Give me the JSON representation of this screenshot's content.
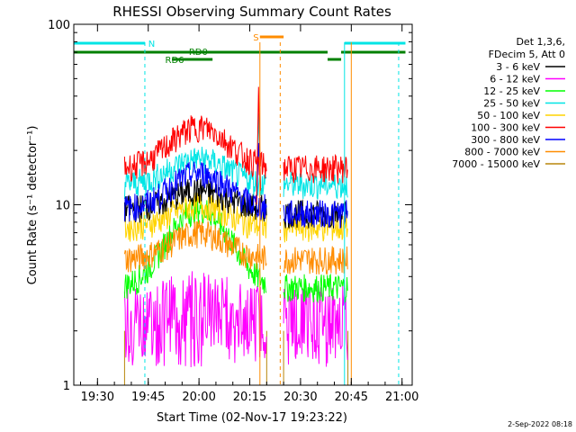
{
  "chart_data": {
    "type": "line",
    "title": "RHESSI Observing Summary Count Rates",
    "xlabel": "Start Time (02-Nov-17 19:23:22)",
    "ylabel": "Count Rate (s⁻¹ detector⁻¹)",
    "y_scale": "log",
    "ylim": [
      1,
      100
    ],
    "xlim_minutes": [
      "19:23",
      "21:03"
    ],
    "x_ticks": [
      "19:30",
      "19:45",
      "20:00",
      "20:15",
      "20:30",
      "20:45",
      "21:00"
    ],
    "y_ticks": [
      "1",
      "10",
      "100"
    ],
    "legend_position": "top-right",
    "legend_header": [
      "Det 1,3,6,",
      "FDecim 5, Att 0"
    ],
    "series": [
      {
        "name": "3 - 6 keV",
        "color": "#000000",
        "level_first": 9.5,
        "level_mid": 12,
        "level_last": 9.0
      },
      {
        "name": "6 - 12 keV",
        "color": "#ff00ff",
        "level_first": 2.5,
        "level_mid": 3.0,
        "level_last": 2.5
      },
      {
        "name": "12 - 25 keV",
        "color": "#00ff00",
        "level_first": 3.5,
        "level_mid": 9.5,
        "level_last": 3.5
      },
      {
        "name": "25 - 50 keV",
        "color": "#00e5e5",
        "level_first": 13,
        "level_mid": 18,
        "level_last": 13
      },
      {
        "name": "50 - 100 keV",
        "color": "#ffd400",
        "level_first": 7.5,
        "level_mid": 10,
        "level_last": 7.5
      },
      {
        "name": "100 - 300 keV",
        "color": "#ff0000",
        "level_first": 16,
        "level_mid": 27,
        "level_last": 16
      },
      {
        "name": "300 - 800 keV",
        "color": "#0000ff",
        "level_first": 9.5,
        "level_mid": 15,
        "level_last": 9.0
      },
      {
        "name": "800 - 7000 keV",
        "color": "#ff8c00",
        "level_first": 5.0,
        "level_mid": 7.0,
        "level_last": 5.0
      },
      {
        "name": "7000 - 15000 keV",
        "color": "#b8860b",
        "level_first": 1.0,
        "level_mid": 1.0,
        "level_last": 1.0
      }
    ],
    "annotations": {
      "flags": [
        "N",
        "S",
        "RD0",
        "RD6"
      ],
      "timestamp": "2-Sep-2022 08:18"
    }
  }
}
